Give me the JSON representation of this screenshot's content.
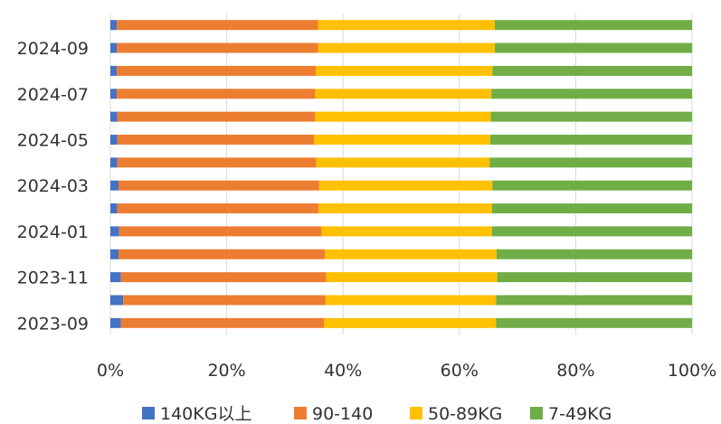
{
  "chart_data": {
    "type": "bar",
    "orientation": "horizontal",
    "stacked": "percent",
    "categories": [
      "2023-09",
      "2023-10",
      "2023-11",
      "2023-12",
      "2024-01",
      "2024-02",
      "2024-03",
      "2024-04",
      "2024-05",
      "2024-06",
      "2024-07",
      "2024-08",
      "2024-09",
      "2024-10"
    ],
    "category_tick_labels": [
      "2023-09",
      "2023-11",
      "2024-01",
      "2024-03",
      "2024-05",
      "2024-07",
      "2024-09"
    ],
    "series": [
      {
        "name": "140KG以上",
        "color": "#4472C4",
        "values": [
          1.8,
          2.2,
          1.8,
          1.4,
          1.5,
          1.2,
          1.4,
          1.2,
          1.2,
          1.2,
          1.1,
          1.1,
          1.1,
          1.1
        ]
      },
      {
        "name": "90-140",
        "color": "#ED7D31",
        "values": [
          34.9,
          34.8,
          35.3,
          35.5,
          34.8,
          34.6,
          34.5,
          34.2,
          33.8,
          34.0,
          34.1,
          34.2,
          34.6,
          34.6
        ]
      },
      {
        "name": "50-89KG",
        "color": "#FFC000",
        "values": [
          29.6,
          29.3,
          29.4,
          29.5,
          29.3,
          29.8,
          29.8,
          29.8,
          30.3,
          30.2,
          30.3,
          30.4,
          30.4,
          30.4
        ]
      },
      {
        "name": "7-49KG",
        "color": "#70AD47",
        "values": [
          33.7,
          33.7,
          33.5,
          33.6,
          34.4,
          34.4,
          34.3,
          34.8,
          34.7,
          34.6,
          34.5,
          34.3,
          33.9,
          33.9
        ]
      }
    ],
    "xlim": [
      0,
      100
    ],
    "x_tick_values": [
      0,
      20,
      40,
      60,
      80,
      100
    ],
    "x_tick_labels": [
      "0%",
      "20%",
      "40%",
      "60%",
      "80%",
      "100%"
    ],
    "grid": "vertical",
    "legend_position": "bottom"
  }
}
